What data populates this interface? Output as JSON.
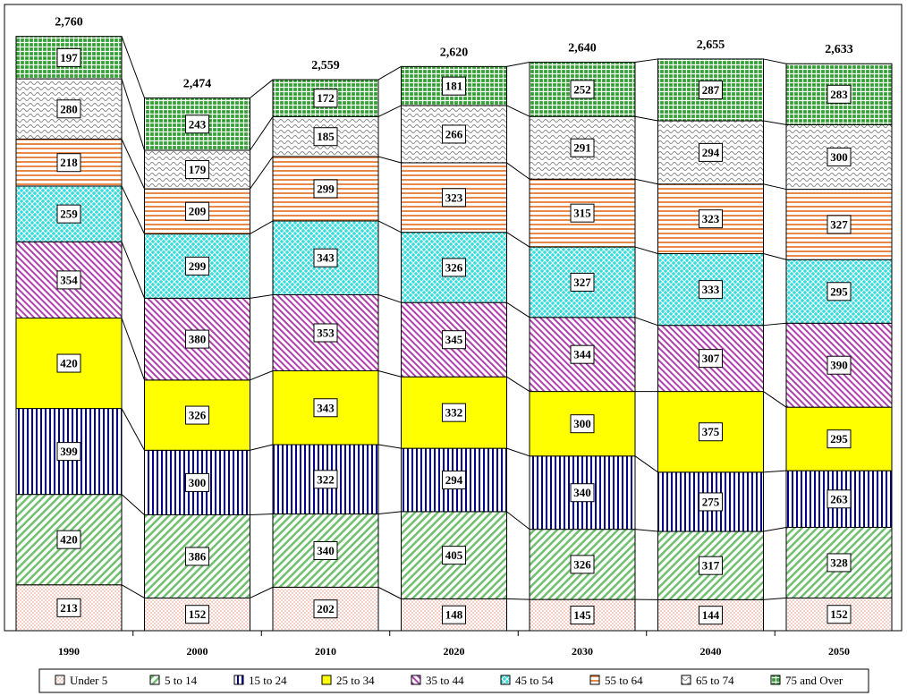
{
  "chart_data": {
    "type": "bar",
    "stacked": true,
    "title": "",
    "xlabel": "",
    "ylabel": "",
    "categories": [
      "1990",
      "2000",
      "2010",
      "2020",
      "2030",
      "2040",
      "2050"
    ],
    "totals": [
      "2,760",
      "2,474",
      "2,559",
      "2,620",
      "2,640",
      "2,655",
      "2,633"
    ],
    "ylim": [
      0,
      2850
    ],
    "grid": false,
    "legend_position": "bottom",
    "series": [
      {
        "name": "Under 5",
        "color": "#f4c2b0",
        "pattern": "dots",
        "values": [
          213,
          152,
          202,
          148,
          145,
          144,
          152
        ]
      },
      {
        "name": "5 to 14",
        "color": "#99d699",
        "pattern": "diag",
        "values": [
          420,
          386,
          340,
          405,
          326,
          317,
          328
        ]
      },
      {
        "name": "15 to 24",
        "color": "#00008b",
        "pattern": "vert",
        "values": [
          399,
          300,
          322,
          294,
          340,
          275,
          263
        ]
      },
      {
        "name": "25 to 34",
        "color": "#ffff00",
        "pattern": "solid",
        "values": [
          420,
          326,
          343,
          332,
          300,
          375,
          295
        ]
      },
      {
        "name": "35 to 44",
        "color": "#b040b0",
        "pattern": "diag",
        "values": [
          354,
          380,
          353,
          345,
          344,
          307,
          390
        ]
      },
      {
        "name": "45 to 54",
        "color": "#33cccc",
        "pattern": "cross",
        "values": [
          259,
          299,
          343,
          326,
          327,
          333,
          295
        ]
      },
      {
        "name": "55 to 64",
        "color": "#e8894a",
        "pattern": "horiz",
        "values": [
          218,
          209,
          299,
          323,
          315,
          323,
          327
        ]
      },
      {
        "name": "65 to 74",
        "color": "#999999",
        "pattern": "wave",
        "values": [
          280,
          179,
          185,
          266,
          291,
          294,
          300
        ]
      },
      {
        "name": "75 and Over",
        "color": "#33a033",
        "pattern": "grid",
        "values": [
          197,
          243,
          172,
          181,
          252,
          287,
          283
        ]
      }
    ]
  }
}
